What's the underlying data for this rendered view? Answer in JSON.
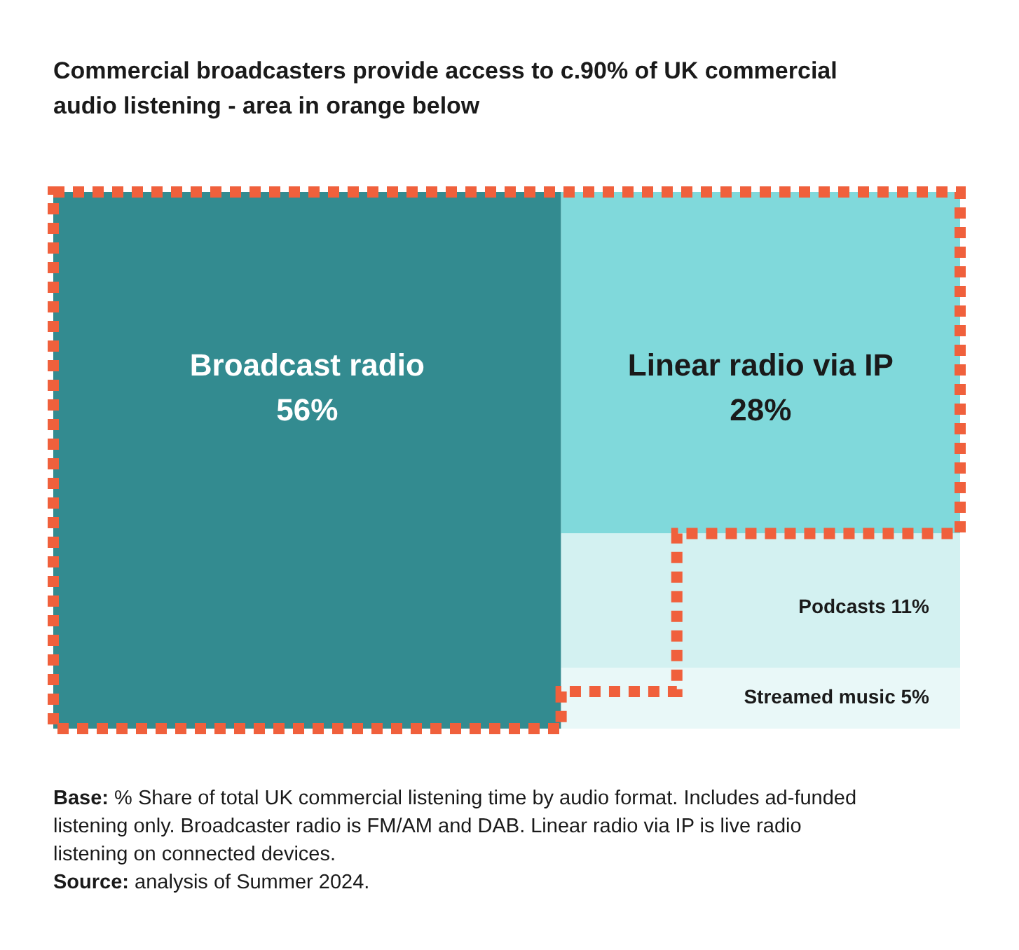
{
  "chart_data": {
    "type": "other",
    "title": "Commercial broadcasters provide access to c.90% of UK commercial audio listening - area in orange below",
    "categories": [
      "Broadcast radio",
      "Linear radio via IP",
      "Podcasts",
      "Streamed music"
    ],
    "values": [
      56,
      28,
      11,
      5
    ],
    "value_labels": [
      "56%",
      "28%",
      "11%",
      "5%"
    ],
    "colors": [
      "#338b90",
      "#80d9db",
      "#d3f1f1",
      "#e9f8f8"
    ],
    "annotations": [
      "Base: % Share of total UK commercial listening time by audio format. Includes ad-funded listening only. Broadcaster radio is FM/AM and DAB. Linear radio via IP is live radio listening on connected devices.",
      "Source: analysis of Summer 2024."
    ]
  }
}
